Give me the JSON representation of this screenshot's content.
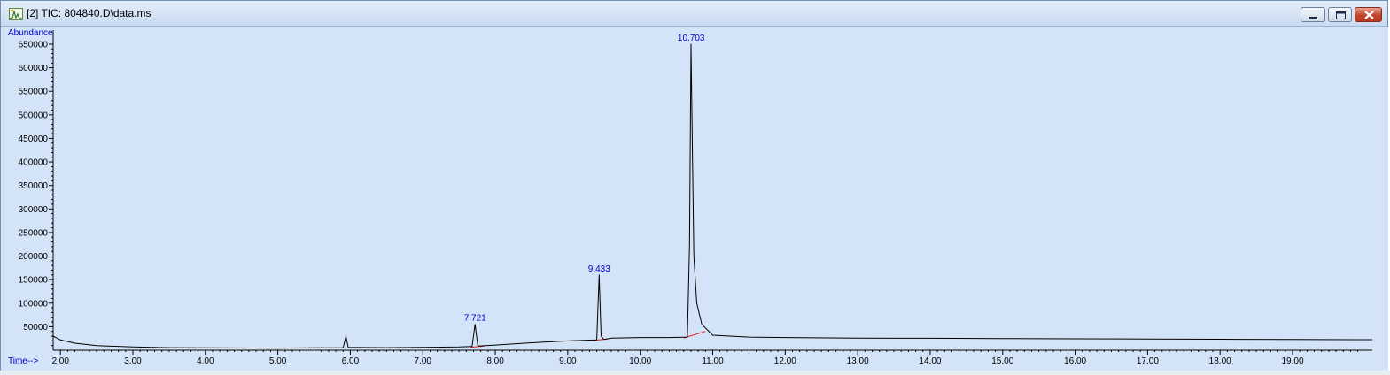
{
  "window": {
    "title": "[2] TIC: 804840.D\\data.ms",
    "icon": "chromatogram-window-icon",
    "controls": [
      "minimize-icon",
      "maximize-icon",
      "close-icon"
    ]
  },
  "chart_data": {
    "type": "line",
    "ylabel": "Abundance",
    "xlabel": "Time-->",
    "xlim": [
      1.9,
      20.1
    ],
    "ylim": [
      0,
      680000
    ],
    "x_ticks": [
      "2.00",
      "3.00",
      "4.00",
      "5.00",
      "6.00",
      "7.00",
      "8.00",
      "9.00",
      "10.00",
      "11.00",
      "12.00",
      "13.00",
      "14.00",
      "15.00",
      "16.00",
      "17.00",
      "18.00",
      "19.00"
    ],
    "y_ticks": [
      "50000",
      "100000",
      "150000",
      "200000",
      "250000",
      "300000",
      "350000",
      "400000",
      "450000",
      "500000",
      "550000",
      "600000",
      "650000"
    ],
    "series": [
      {
        "color": "#000000",
        "points": [
          [
            1.9,
            30000
          ],
          [
            2.0,
            22000
          ],
          [
            2.2,
            15000
          ],
          [
            2.5,
            10000
          ],
          [
            3.0,
            7000
          ],
          [
            3.5,
            5500
          ],
          [
            4.0,
            5000
          ],
          [
            5.0,
            4500
          ],
          [
            5.5,
            5000
          ],
          [
            5.9,
            5200
          ],
          [
            5.94,
            30000
          ],
          [
            5.97,
            6000
          ],
          [
            6.5,
            5500
          ],
          [
            7.0,
            6000
          ],
          [
            7.5,
            7000
          ],
          [
            7.68,
            8000
          ],
          [
            7.72,
            55000
          ],
          [
            7.76,
            9000
          ],
          [
            8.0,
            11000
          ],
          [
            8.5,
            16000
          ],
          [
            9.0,
            20000
          ],
          [
            9.4,
            22000
          ],
          [
            9.433,
            160000
          ],
          [
            9.46,
            30000
          ],
          [
            9.5,
            23000
          ],
          [
            9.6,
            26000
          ],
          [
            10.0,
            27000
          ],
          [
            10.4,
            27000
          ],
          [
            10.65,
            28000
          ],
          [
            10.68,
            220000
          ],
          [
            10.7,
            650000
          ],
          [
            10.72,
            420000
          ],
          [
            10.74,
            200000
          ],
          [
            10.78,
            100000
          ],
          [
            10.85,
            55000
          ],
          [
            11.0,
            32000
          ],
          [
            11.5,
            28000
          ],
          [
            12.0,
            27000
          ],
          [
            13.0,
            26000
          ],
          [
            14.0,
            25500
          ],
          [
            15.0,
            25000
          ],
          [
            16.0,
            24500
          ],
          [
            17.0,
            24000
          ],
          [
            18.0,
            23500
          ],
          [
            19.0,
            23000
          ],
          [
            20.1,
            22500
          ]
        ]
      }
    ],
    "baselines": [
      {
        "color": "#e02020",
        "points": [
          [
            7.65,
            6000
          ],
          [
            7.85,
            9000
          ]
        ]
      },
      {
        "color": "#e02020",
        "points": [
          [
            9.35,
            21000
          ],
          [
            9.55,
            24000
          ]
        ]
      },
      {
        "color": "#e02020",
        "points": [
          [
            10.6,
            26000
          ],
          [
            10.9,
            40000
          ]
        ]
      }
    ],
    "peak_labels": [
      {
        "label": "7.721",
        "x": 7.721,
        "y": 55000
      },
      {
        "label": "9.433",
        "x": 9.433,
        "y": 160000
      },
      {
        "label": "10.703",
        "x": 10.703,
        "y": 650000
      }
    ],
    "grid": false,
    "background": "#d3e4f8",
    "label_color": "#0000cc"
  }
}
